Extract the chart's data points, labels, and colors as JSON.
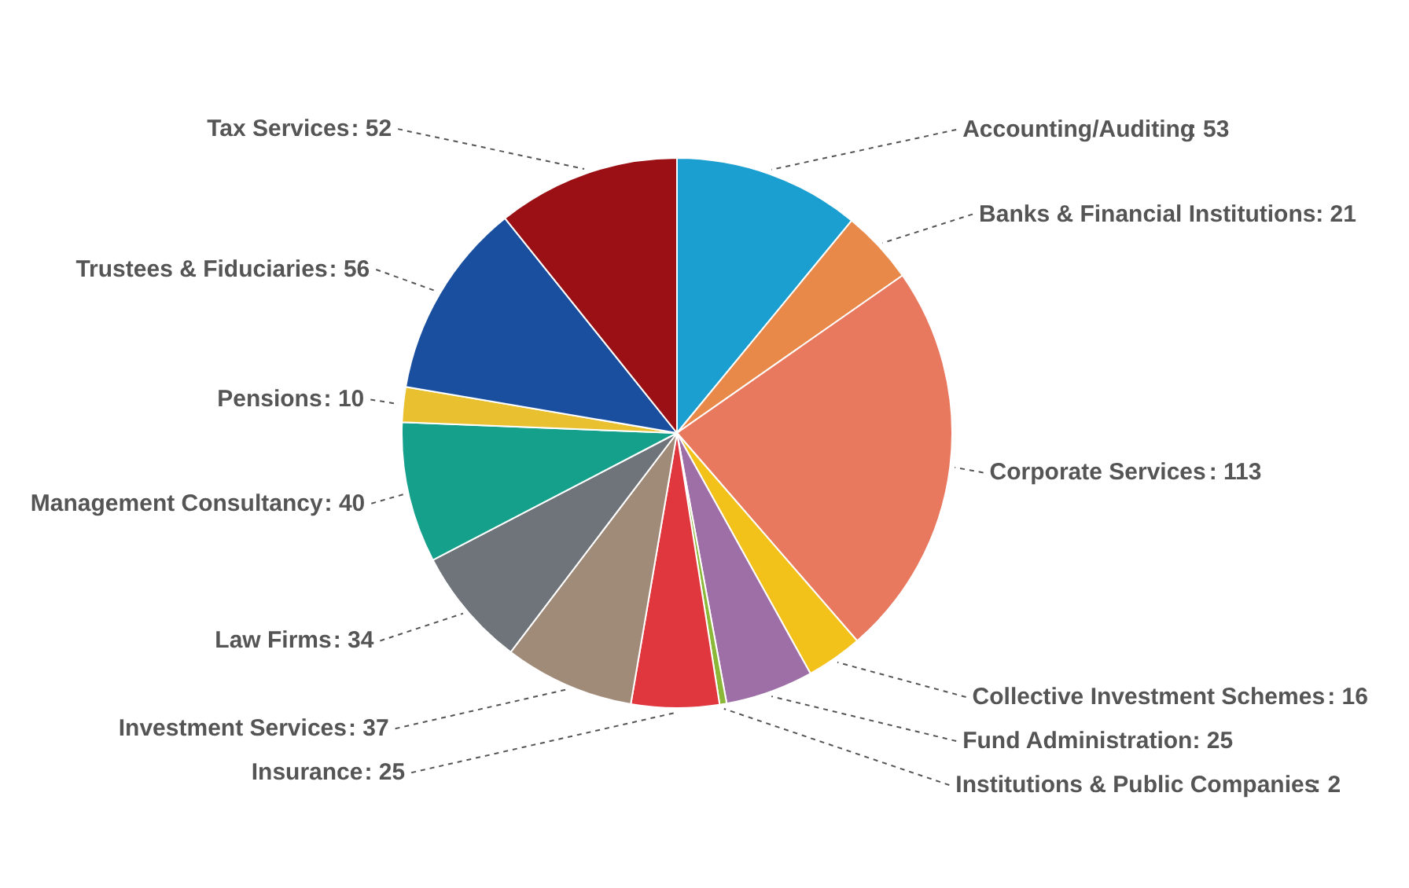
{
  "chart_data": {
    "type": "pie",
    "categories": [
      "Accounting/Auditing",
      "Banks & Financial Institutions",
      "Corporate Services",
      "Collective Investment Schemes",
      "Fund Administration",
      "Institutions & Public Companies",
      "Insurance",
      "Investment Services",
      "Law Firms",
      "Management Consultancy",
      "Pensions",
      "Trustees & Fiduciaries",
      "Tax Services"
    ],
    "values": [
      53,
      21,
      113,
      16,
      25,
      2,
      25,
      37,
      34,
      40,
      10,
      56,
      52
    ],
    "colors": [
      "#1a9fd0",
      "#e8894a",
      "#e8785e",
      "#f2c21a",
      "#9e6fa6",
      "#8cb83a",
      "#e0373f",
      "#a08a78",
      "#6e7479",
      "#14a08a",
      "#e8c030",
      "#1a4fa0",
      "#9a1015"
    ],
    "value_labels": [
      ": 53",
      ": 21",
      ": 113",
      ": 16",
      ": 25",
      ": 2",
      ": 25",
      ": 37",
      ": 34",
      ": 40",
      ": 10",
      ": 56",
      ": 52"
    ],
    "legend": false
  }
}
